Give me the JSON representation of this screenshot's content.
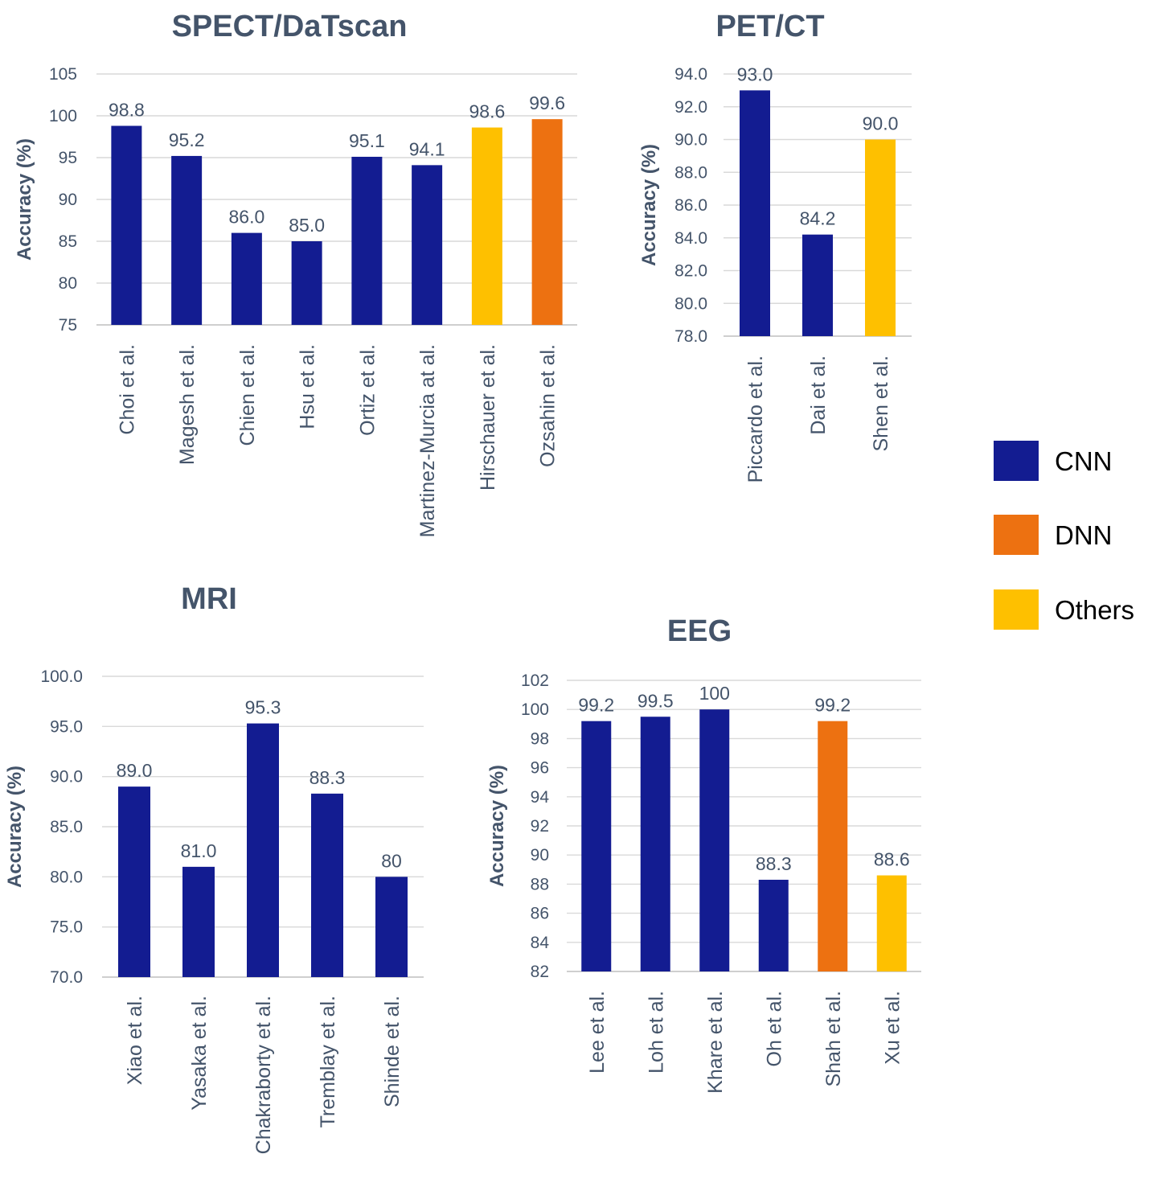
{
  "colors": {
    "CNN": "#131C91",
    "DNN": "#ED7111",
    "Others": "#FEC000"
  },
  "legend": [
    {
      "key": "CNN",
      "label": "CNN"
    },
    {
      "key": "DNN",
      "label": "DNN"
    },
    {
      "key": "Others",
      "label": "Others"
    }
  ],
  "chart_data": [
    {
      "type": "bar",
      "title": "SPECT/DaTscan",
      "ylabel": "Accuracy (%)",
      "xlabel": "",
      "ylim": [
        75,
        105
      ],
      "yticks": [
        "75",
        "80",
        "85",
        "90",
        "95",
        "100",
        "105"
      ],
      "categories": [
        "Choi et al.",
        "Magesh et al.",
        "Chien et al.",
        "Hsu et al.",
        "Ortiz et al.",
        "Martinez-Murcia at al.",
        "Hirschauer et al.",
        "Ozsahin et al."
      ],
      "values": [
        98.8,
        95.2,
        86.0,
        85.0,
        95.1,
        94.1,
        98.6,
        99.6
      ],
      "labels": [
        "98.8",
        "95.2",
        "86.0",
        "85.0",
        "95.1",
        "94.1",
        "98.6",
        "99.6"
      ],
      "groups": [
        "CNN",
        "CNN",
        "CNN",
        "CNN",
        "CNN",
        "CNN",
        "Others",
        "DNN"
      ]
    },
    {
      "type": "bar",
      "title": "PET/CT",
      "ylabel": "Accuracy (%)",
      "xlabel": "",
      "ylim": [
        78,
        94
      ],
      "yticks": [
        "78.0",
        "80.0",
        "82.0",
        "84.0",
        "86.0",
        "88.0",
        "90.0",
        "92.0",
        "94.0"
      ],
      "categories": [
        "Piccardo et al.",
        "Dai et al.",
        "Shen et al."
      ],
      "values": [
        93.0,
        84.2,
        90.0
      ],
      "labels": [
        "93.0",
        "84.2",
        "90.0"
      ],
      "groups": [
        "CNN",
        "CNN",
        "Others"
      ]
    },
    {
      "type": "bar",
      "title": "MRI",
      "ylabel": "Accuracy (%)",
      "xlabel": "",
      "ylim": [
        70,
        100
      ],
      "yticks": [
        "70.0",
        "75.0",
        "80.0",
        "85.0",
        "90.0",
        "95.0",
        "100.0"
      ],
      "categories": [
        "Xiao et al.",
        "Yasaka et al.",
        "Chakraborty et al.",
        "Tremblay et al.",
        "Shinde et al."
      ],
      "values": [
        89.0,
        81.0,
        95.3,
        88.3,
        80
      ],
      "labels": [
        "89.0",
        "81.0",
        "95.3",
        "88.3",
        "80"
      ],
      "groups": [
        "CNN",
        "CNN",
        "CNN",
        "CNN",
        "CNN"
      ]
    },
    {
      "type": "bar",
      "title": "EEG",
      "ylabel": "Accuracy (%)",
      "xlabel": "",
      "ylim": [
        82,
        102
      ],
      "yticks": [
        "82",
        "84",
        "86",
        "88",
        "90",
        "92",
        "94",
        "96",
        "98",
        "100",
        "102"
      ],
      "categories": [
        "Lee et al.",
        "Loh et al.",
        "Khare et al.",
        "Oh et al.",
        "Shah et al.",
        "Xu et al."
      ],
      "values": [
        99.2,
        99.5,
        100,
        88.3,
        99.2,
        88.6
      ],
      "labels": [
        "99.2",
        "99.5",
        "100",
        "88.3",
        "99.2",
        "88.6"
      ],
      "groups": [
        "CNN",
        "CNN",
        "CNN",
        "CNN",
        "DNN",
        "Others"
      ]
    }
  ]
}
